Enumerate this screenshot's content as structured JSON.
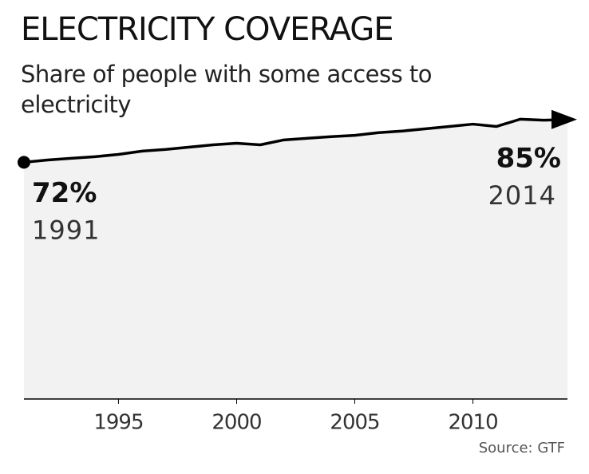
{
  "chart_data": {
    "type": "area",
    "title": "ELECTRICITY COVERAGE",
    "subtitle": "Share of people with some access to electricity",
    "source": "Source: GTF",
    "x": [
      1991,
      1992,
      1993,
      1994,
      1995,
      1996,
      1997,
      1998,
      1999,
      2000,
      2001,
      2002,
      2003,
      2004,
      2005,
      2006,
      2007,
      2008,
      2009,
      2010,
      2011,
      2012,
      2013,
      2014
    ],
    "values": [
      72,
      72.7,
      73.2,
      73.7,
      74.4,
      75.4,
      75.9,
      76.6,
      77.3,
      77.8,
      77.3,
      78.8,
      79.3,
      79.8,
      80.2,
      81.0,
      81.5,
      82.2,
      82.9,
      83.6,
      82.9,
      85.1,
      84.8,
      85
    ],
    "value_labels": [
      "72%",
      null,
      null,
      null,
      null,
      null,
      null,
      null,
      null,
      null,
      null,
      null,
      null,
      null,
      null,
      null,
      null,
      null,
      null,
      null,
      null,
      null,
      null,
      "85%"
    ],
    "color": "#000000",
    "fill": "#f2f2f2",
    "xlim": [
      1991,
      2014
    ],
    "xticks": [
      1995,
      2000,
      2005,
      2010
    ],
    "ylim": [
      0,
      100
    ]
  }
}
